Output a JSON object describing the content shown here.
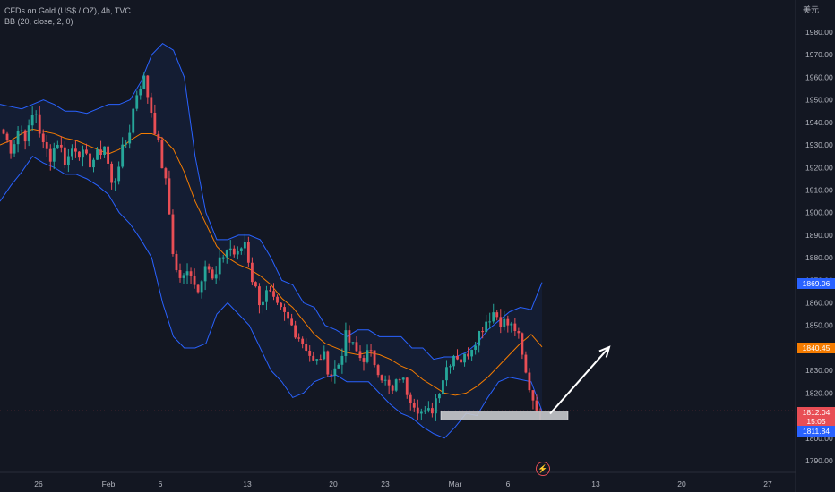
{
  "legend": {
    "title": "CFDs on Gold (US$ / OZ), 4h, TVC",
    "indicator": "BB (20, close, 2, 0)"
  },
  "currency_label": "美元",
  "price_tags": {
    "last": "1812.04",
    "countdown": "15:05",
    "bid": "1811.84",
    "bb_upper": "1869.06",
    "bb_basis": "1840.45"
  },
  "event_icon": "lightning-icon",
  "colors": {
    "background": "#131722",
    "up": "#26a69a",
    "down": "#e84e55",
    "bb_band": "#2962ff",
    "bb_basis": "#f57c00",
    "annotation": "#ffffff"
  },
  "chart_data": {
    "type": "candlestick",
    "symbol": "CFDs on Gold (US$ / OZ)",
    "interval": "4h",
    "y_axis": {
      "ticks": [
        "1980.00",
        "1970.00",
        "1960.00",
        "1950.00",
        "1940.00",
        "1930.00",
        "1920.00",
        "1910.00",
        "1900.00",
        "1890.00",
        "1880.00",
        "1870.00",
        "1860.00",
        "1850.00",
        "1840.00",
        "1830.00",
        "1820.00",
        "1810.00",
        "1800.00",
        "1790.00"
      ],
      "range": [
        1786,
        1993
      ]
    },
    "x_axis": {
      "ticks": [
        "26",
        "Feb",
        "6",
        "13",
        "20",
        "23",
        "Mar",
        "6",
        "13",
        "20",
        "27"
      ]
    },
    "close_path": [
      1935,
      1928,
      1938,
      1933,
      1947,
      1930,
      1925,
      1932,
      1922,
      1930,
      1926,
      1922,
      1925,
      1930,
      1910,
      1925,
      1933,
      1952,
      1960,
      1945,
      1928,
      1910,
      1875,
      1870,
      1875,
      1865,
      1880,
      1868,
      1880,
      1885,
      1880,
      1888,
      1870,
      1860,
      1865,
      1858,
      1855,
      1850,
      1845,
      1840,
      1832,
      1838,
      1828,
      1832,
      1845,
      1840,
      1835,
      1838,
      1832,
      1825,
      1820,
      1828,
      1820,
      1815,
      1810,
      1812,
      1822,
      1832,
      1838,
      1834,
      1840,
      1846,
      1852,
      1856,
      1852,
      1850,
      1848,
      1830,
      1818,
      1812.04
    ],
    "bollinger": {
      "upper_path": [
        1948,
        1947,
        1946,
        1948,
        1950,
        1948,
        1945,
        1945,
        1944,
        1946,
        1948,
        1948,
        1950,
        1958,
        1970,
        1975,
        1972,
        1960,
        1925,
        1900,
        1888,
        1888,
        1890,
        1890,
        1888,
        1880,
        1870,
        1868,
        1860,
        1858,
        1850,
        1848,
        1845,
        1848,
        1848,
        1845,
        1845,
        1845,
        1840,
        1840,
        1835,
        1836,
        1836,
        1838,
        1842,
        1848,
        1852,
        1856,
        1858,
        1857,
        1869.06
      ],
      "basis_path": [
        1930,
        1932,
        1935,
        1937,
        1936,
        1935,
        1933,
        1932,
        1930,
        1928,
        1926,
        1928,
        1932,
        1935,
        1935,
        1933,
        1928,
        1918,
        1905,
        1895,
        1885,
        1880,
        1877,
        1875,
        1872,
        1868,
        1862,
        1858,
        1852,
        1846,
        1842,
        1840,
        1838,
        1837,
        1838,
        1837,
        1835,
        1832,
        1830,
        1826,
        1823,
        1820,
        1819,
        1820,
        1823,
        1827,
        1832,
        1837,
        1842,
        1846,
        1840.45
      ],
      "lower_path": [
        1905,
        1912,
        1918,
        1925,
        1922,
        1920,
        1917,
        1917,
        1915,
        1912,
        1908,
        1900,
        1895,
        1888,
        1880,
        1860,
        1845,
        1840,
        1840,
        1842,
        1855,
        1860,
        1855,
        1850,
        1840,
        1830,
        1825,
        1818,
        1820,
        1825,
        1827,
        1828,
        1825,
        1825,
        1825,
        1820,
        1815,
        1811,
        1809,
        1805,
        1802,
        1800,
        1805,
        1811,
        1810,
        1818,
        1825,
        1827,
        1826,
        1825,
        1812
      ]
    },
    "annotations": [
      {
        "type": "support_zone",
        "from_price": 1808,
        "to_price": 1812,
        "label": ""
      },
      {
        "type": "arrow_up",
        "from_price": 1812,
        "to_price": 1840,
        "label": ""
      }
    ]
  }
}
